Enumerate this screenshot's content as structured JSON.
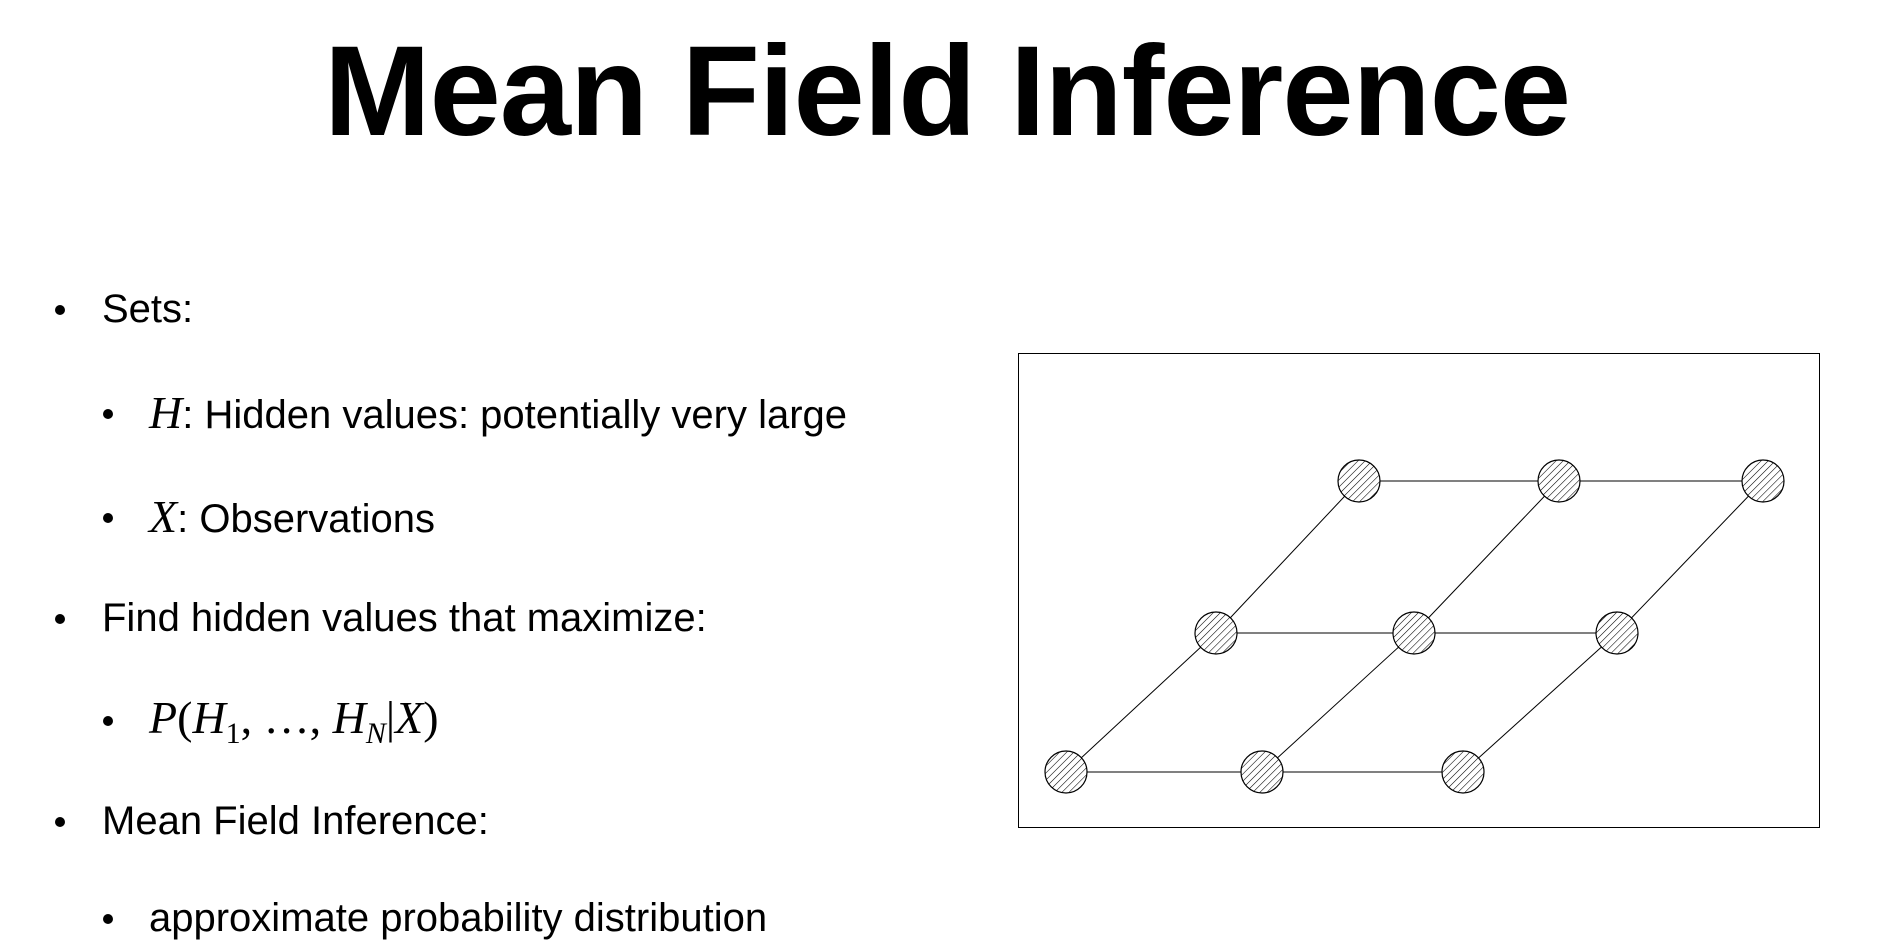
{
  "slide": {
    "title": "Mean Field Inference"
  },
  "bullets": [
    {
      "text": "Sets:"
    },
    {
      "var": "H",
      "text": ": Hidden values: potentially very large"
    },
    {
      "var": "X",
      "text": ": Observations"
    },
    {
      "text": "Find hidden values that maximize:"
    },
    {
      "formula": {
        "p": "P",
        "open": "(",
        "h": "H",
        "sub1": "1",
        "sep": ", …, ",
        "hn": "H",
        "subn": "N",
        "bar": "|",
        "x": "X",
        "close": ")"
      }
    },
    {
      "text": "Mean Field Inference:"
    },
    {
      "text": "approximate probability distribution"
    }
  ],
  "figure": {
    "description_nodes": 9,
    "node_fill": "hatched",
    "node_color": "#000000"
  }
}
